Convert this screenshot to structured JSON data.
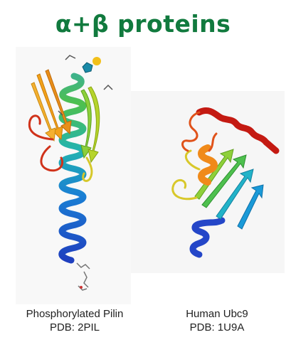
{
  "title": "α+β proteins",
  "colors": {
    "title": "#117a3e",
    "spectrum": [
      "#1f3fbf",
      "#1a7fd4",
      "#22b3b0",
      "#4ec04e",
      "#c9d22a",
      "#f2a21a",
      "#e5521a",
      "#c41a12"
    ]
  },
  "structures": [
    {
      "name": "Phosphorylated Pilin",
      "pdb": "PDB: 2PIL"
    },
    {
      "name": "Human Ubc9",
      "pdb": "PDB: 1U9A"
    }
  ]
}
